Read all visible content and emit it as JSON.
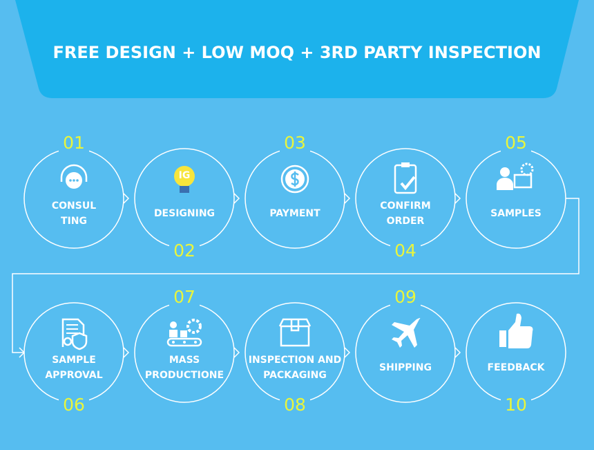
{
  "header": {
    "title": "FREE DESIGN + LOW MOQ + 3RD PARTY INSPECTION"
  },
  "steps": [
    {
      "number": "01",
      "label": [
        "CONSUL",
        "TING"
      ]
    },
    {
      "number": "02",
      "label": [
        "DESIGNING"
      ],
      "icon_text": "IG"
    },
    {
      "number": "03",
      "label": [
        "PAYMENT"
      ]
    },
    {
      "number": "04",
      "label": [
        "CONFIRM",
        "ORDER"
      ]
    },
    {
      "number": "05",
      "label": [
        "SAMPLES"
      ]
    },
    {
      "number": "06",
      "label": [
        "SAMPLE",
        "APPROVAL"
      ]
    },
    {
      "number": "07",
      "label": [
        "MASS",
        "PRODUCTIONE"
      ]
    },
    {
      "number": "08",
      "label": [
        "INSPECTION AND",
        "PACKAGING"
      ]
    },
    {
      "number": "09",
      "label": [
        "SHIPPING"
      ]
    },
    {
      "number": "10",
      "label": [
        "FEEDBACK"
      ]
    }
  ]
}
